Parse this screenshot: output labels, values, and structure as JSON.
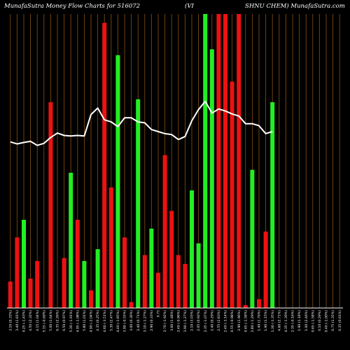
{
  "header": {
    "left": "MunafaSutra  Money Flow  Charts for 516072",
    "middle": "(VI",
    "right": "SHNU CHEM) MunafaSutra.com"
  },
  "colors": {
    "background": "#000000",
    "up": "#22ee22",
    "down": "#ee1111",
    "neutral": "#ffffff",
    "grid": "#7a4a12",
    "line": "#ffffff"
  },
  "chart_data": {
    "type": "bar",
    "grid": "vertical",
    "bar_ylim": [
      0,
      100
    ],
    "line_ylim": [
      0,
      100
    ],
    "categories": [
      "3.10 (0.33%)",
      "3.40 (1.81%)",
      "4.25 (-1.43%)",
      "4.50 (2.32%)",
      "4.15 (1.04%)",
      "5.15 (-0.69%)",
      "5.00 (1.64%)",
      "6.35 (2.26%)",
      "6.50 (0.97%)",
      "5.30 (-1.91%)",
      "4.95 (-1.08%)",
      "5.80 (1.01%)",
      "4.90 (-2.04%)",
      "4.35 (0.25%)",
      "4.60 (-3.51%)",
      "5.30 (2.47%)",
      "4.40 (-1.85%)",
      "3.90 (-0.55%)",
      "3.00 (0.36%)",
      "2.40 (0.71%)",
      "3.10 (-1.27%)",
      "2.90 (0.33%)",
      "0.75",
      "3.70 (-1.92%)",
      "3.60 (1.48%)",
      "3.40 (-0.96%)",
      "3.90 (-1.27%)",
      "2.10 (3.03%)",
      "2.05 (0.92%)",
      "2.35 (-1.07%)",
      "2.40 (0.29%)",
      "2.55 (2.83%)",
      "2.40 (-3.14%)",
      "0.55 (-0.98%)",
      "2.90 (1.96%)",
      "0.65 (-1.58%)",
      "2.80 (-1.29%)",
      "1.40 (1.76%)",
      "1.90 (1.15%)",
      "1.30 (-1.35%)",
      "4.60 (2.71%)",
      "4.35 (-1.30%)",
      "2.35 (-0.16%)",
      "1.90 (1.18%)",
      "1.00 (2.46%)",
      "0.65 (-1.58%)",
      "0.10 (0.29%)",
      "0.40 (-1.00%)",
      "0.75 (1.35%)",
      "0.35 (0.61%)"
    ],
    "bar_colors": [
      "red",
      "red",
      "green",
      "red",
      "red",
      "green",
      "red",
      "green",
      "red",
      "green",
      "red",
      "green",
      "red",
      "green",
      "red",
      "red",
      "green",
      "red",
      "red",
      "green",
      "red",
      "green",
      "red",
      "red",
      "red",
      "red",
      "red",
      "green",
      "green",
      "green",
      "green",
      "red",
      "red",
      "red",
      "red",
      "red",
      "green",
      "red",
      "red",
      "green",
      "red",
      "red",
      "white",
      "red",
      "red",
      "red",
      "red",
      "red",
      "red",
      "green"
    ],
    "bar_values": [
      9,
      24,
      30,
      10,
      16,
      0,
      70,
      0,
      17,
      46,
      30,
      16,
      6,
      20,
      97,
      41,
      86,
      24,
      2,
      71,
      18,
      27,
      12,
      52,
      33,
      18,
      15,
      40,
      22,
      100,
      88,
      100,
      100,
      77,
      100,
      1,
      47,
      3,
      26,
      70,
      0,
      0,
      0,
      0,
      0,
      0,
      0,
      0,
      0,
      0
    ],
    "line_values": [
      56.5,
      55.8,
      56.3,
      56.7,
      55.3,
      56.0,
      58.0,
      59.5,
      58.7,
      58.5,
      58.7,
      58.5,
      65.8,
      68.0,
      64.0,
      63.3,
      61.7,
      64.7,
      64.7,
      63.3,
      63.0,
      60.7,
      60.0,
      59.3,
      59.0,
      57.3,
      58.3,
      63.7,
      67.5,
      70.3,
      66.3,
      67.7,
      67.0,
      66.0,
      65.3,
      62.7,
      62.7,
      62.0,
      59.3,
      60.0
    ]
  }
}
